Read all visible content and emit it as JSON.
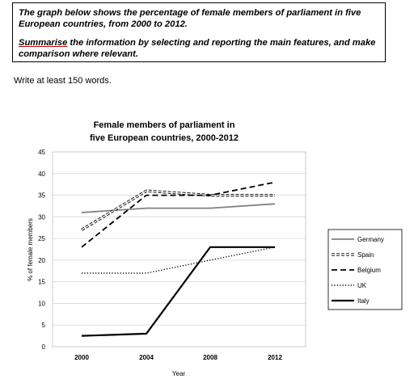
{
  "task": {
    "line1_em": "The graph below shows the percentage of female members of parliament in five European countries, from 2000 to 2012.",
    "line2_underlined": "Summarise",
    "line2_rest": " the information by selecting and reporting the main features, and make comparison where relevant."
  },
  "instruction": "Write at least 150 words.",
  "chart_data": {
    "type": "line",
    "title": "Female members of parliament in five European countries, 2000-2012",
    "title_line1": "Female members of parliament in",
    "title_line2": "five European countries, 2000-2012",
    "xlabel": "Year",
    "ylabel": "% of female members",
    "x": [
      "2000",
      "2004",
      "2008",
      "2012"
    ],
    "ylim": [
      0,
      45
    ],
    "yticks": [
      0,
      5,
      10,
      15,
      20,
      25,
      30,
      35,
      40,
      45
    ],
    "grid": true,
    "legend_position": "right",
    "series": [
      {
        "name": "Germany",
        "values": [
          31,
          32,
          32,
          33
        ],
        "color": "#808080",
        "style": "solid"
      },
      {
        "name": "Spain",
        "values": [
          27,
          36,
          35,
          35
        ],
        "color": "#000000",
        "style": "open-dash"
      },
      {
        "name": "Belgium",
        "values": [
          23,
          35,
          35,
          38
        ],
        "color": "#000000",
        "style": "dash"
      },
      {
        "name": "UK",
        "values": [
          17,
          17,
          20,
          23
        ],
        "color": "#000000",
        "style": "dot"
      },
      {
        "name": "Italy",
        "values": [
          2.5,
          3,
          23,
          23
        ],
        "color": "#000000",
        "style": "thick"
      }
    ]
  }
}
